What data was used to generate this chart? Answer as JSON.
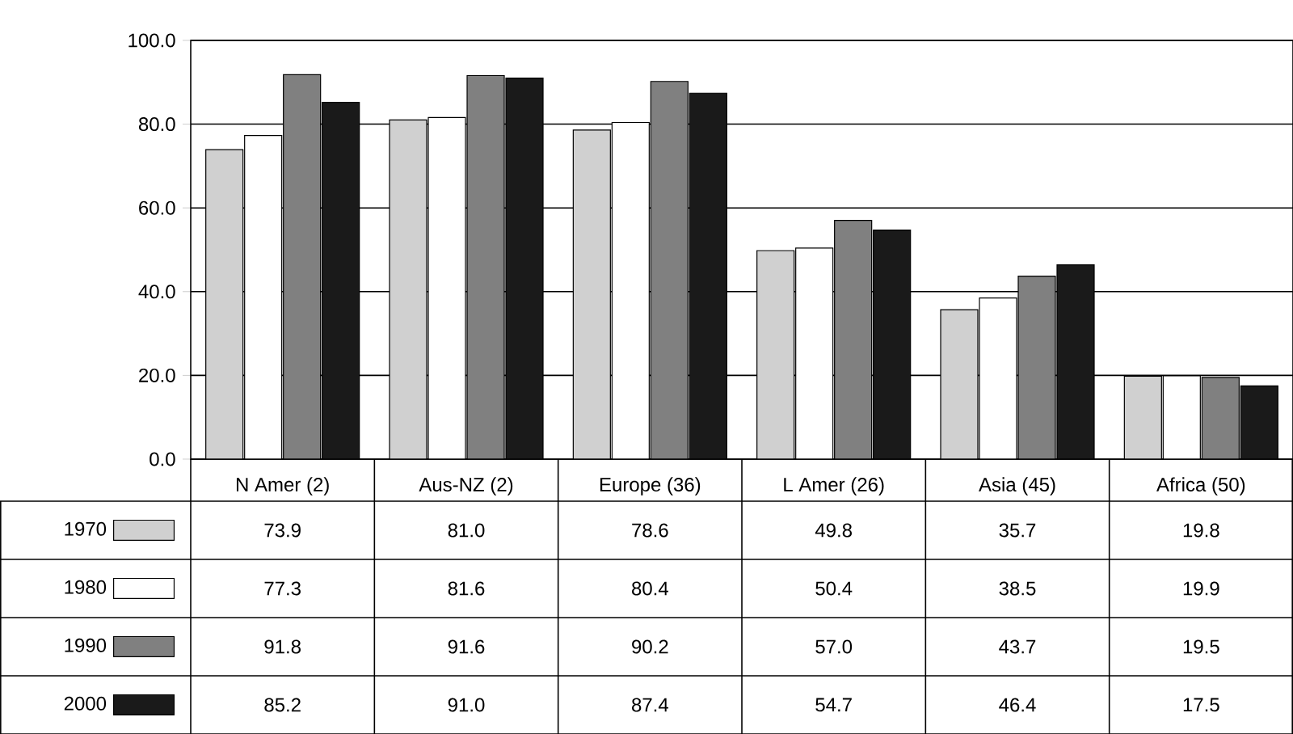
{
  "chart_data": {
    "type": "bar",
    "categories": [
      "N Amer (2)",
      "Aus-NZ (2)",
      "Europe (36)",
      "L Amer (26)",
      "Asia (45)",
      "Africa (50)"
    ],
    "series": [
      {
        "name": "1970",
        "color": "#d0d0d0",
        "values": [
          73.9,
          81.0,
          78.6,
          49.8,
          35.7,
          19.8
        ],
        "value_labels": [
          "73.9",
          "81.0",
          "78.6",
          "49.8",
          "35.7",
          "19.8"
        ]
      },
      {
        "name": "1980",
        "color": "#ffffff",
        "values": [
          77.3,
          81.6,
          80.4,
          50.4,
          38.5,
          19.9
        ],
        "value_labels": [
          "77.3",
          "81.6",
          "80.4",
          "50.4",
          "38.5",
          "19.9"
        ]
      },
      {
        "name": "1990",
        "color": "#808080",
        "values": [
          91.8,
          91.6,
          90.2,
          57.0,
          43.7,
          19.5
        ],
        "value_labels": [
          "91.8",
          "91.6",
          "90.2",
          "57.0",
          "43.7",
          "19.5"
        ]
      },
      {
        "name": "2000",
        "color": "#1a1a1a",
        "values": [
          85.2,
          91.0,
          87.4,
          54.7,
          46.4,
          17.5
        ],
        "value_labels": [
          "85.2",
          "91.0",
          "87.4",
          "54.7",
          "46.4",
          "17.5"
        ]
      }
    ],
    "ylim": [
      0,
      100
    ],
    "yticks": [
      {
        "value": 0,
        "label": "0.0"
      },
      {
        "value": 20,
        "label": "20.0"
      },
      {
        "value": 40,
        "label": "40.0"
      },
      {
        "value": 60,
        "label": "60.0"
      },
      {
        "value": 80,
        "label": "80.0"
      },
      {
        "value": 100,
        "label": "100.0"
      }
    ],
    "grid": "y",
    "legend": "bottom"
  }
}
